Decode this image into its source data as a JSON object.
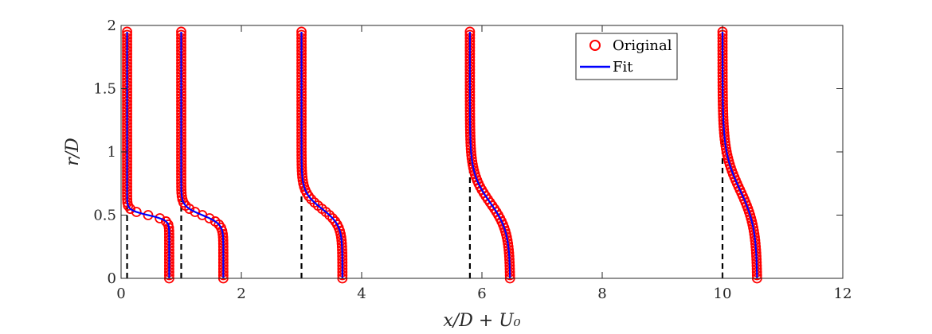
{
  "chart_data": {
    "type": "line",
    "title": "",
    "xlabel": "x/D + U₀",
    "ylabel": "r/D",
    "xlim": [
      0,
      12
    ],
    "ylim": [
      0,
      2
    ],
    "xticks": [
      0,
      2,
      4,
      6,
      8,
      10,
      12
    ],
    "yticks": [
      0,
      0.5,
      1,
      1.5,
      2
    ],
    "xtick_labels": [
      "0",
      "2",
      "4",
      "6",
      "8",
      "10",
      "12"
    ],
    "ytick_labels": [
      "0",
      "0.5",
      "1",
      "1.5",
      "2"
    ],
    "grid": false,
    "legend": {
      "position": "top-right",
      "entries": [
        "Original",
        "Fit"
      ]
    },
    "colors": {
      "original": "#ff0000",
      "fit": "#0000ff",
      "reference": "#000000"
    },
    "profiles": [
      {
        "x_ref": 0.1,
        "u_max": 0.7,
        "r_center": 0.5,
        "width": 0.04
      },
      {
        "x_ref": 1.0,
        "u_max": 0.7,
        "r_center": 0.5,
        "width": 0.07
      },
      {
        "x_ref": 3.0,
        "u_max": 0.68,
        "r_center": 0.55,
        "width": 0.13
      },
      {
        "x_ref": 5.8,
        "u_max": 0.67,
        "r_center": 0.6,
        "width": 0.23
      },
      {
        "x_ref": 10.0,
        "u_max": 0.58,
        "r_center": 0.7,
        "width": 0.3
      }
    ],
    "r_samples": {
      "start": 0,
      "end": 1.95,
      "count": 79
    }
  }
}
